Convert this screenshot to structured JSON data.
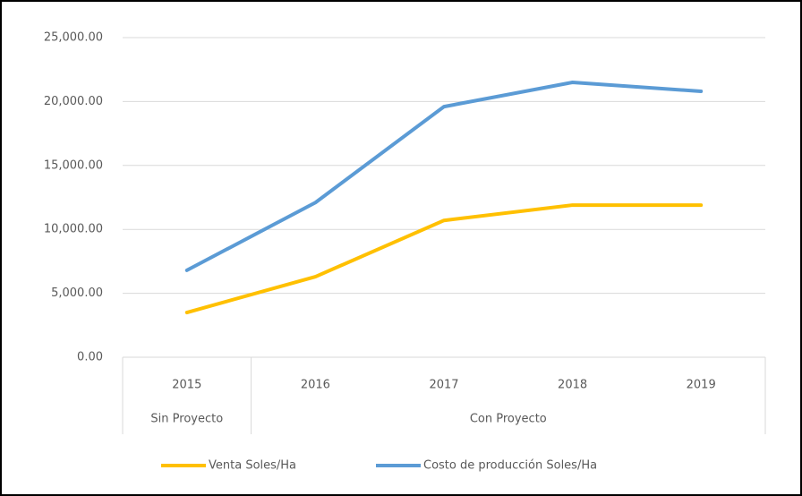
{
  "chart_data": {
    "type": "line",
    "categories": [
      "2015",
      "2016",
      "2017",
      "2018",
      "2019"
    ],
    "category_groups": [
      {
        "name": "Sin Proyecto",
        "size": 1
      },
      {
        "name": "Con Proyecto",
        "size": 4
      }
    ],
    "series": [
      {
        "name": "Venta Soles/Ha",
        "color": "#ffc000",
        "values": [
          3500,
          6300,
          10700,
          11900,
          11900
        ]
      },
      {
        "name": "Costo de producción Soles/Ha",
        "color": "#5b9bd5",
        "values": [
          6800,
          12100,
          19600,
          21500,
          20800
        ]
      }
    ],
    "ylim": [
      0,
      25000
    ],
    "yticks": [
      {
        "value": 0,
        "label": "0.00"
      },
      {
        "value": 5000,
        "label": "5,000.00"
      },
      {
        "value": 10000,
        "label": "10,000.00"
      },
      {
        "value": 15000,
        "label": "15,000.00"
      },
      {
        "value": 20000,
        "label": "20,000.00"
      },
      {
        "value": 25000,
        "label": "25,000.00"
      }
    ],
    "grid": true,
    "legend": "bottom"
  }
}
